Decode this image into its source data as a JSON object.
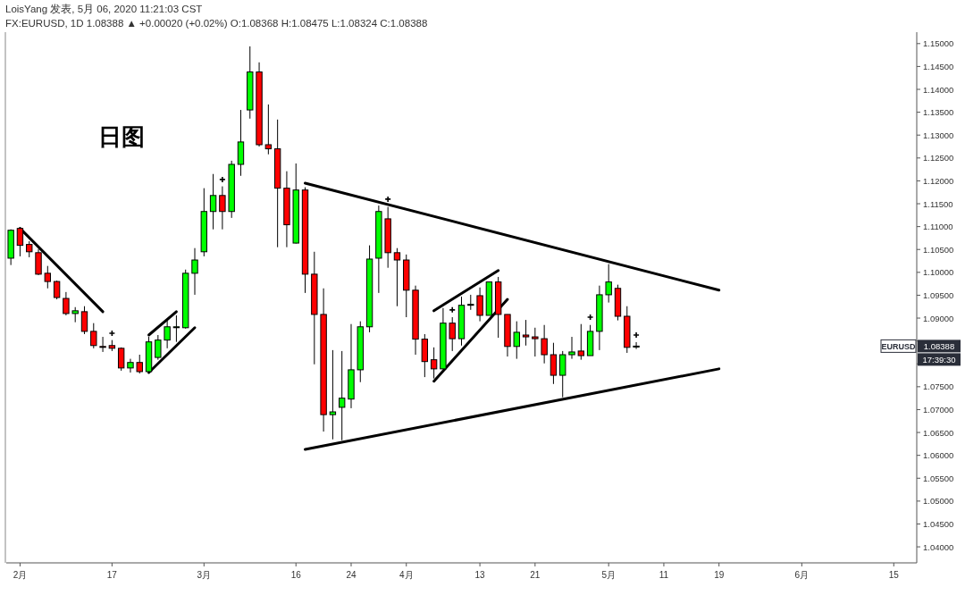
{
  "chart_data": {
    "type": "candlestick",
    "title": "LoisYang 发表, 5月 06, 2020 11:21:03 CST",
    "subtitle": "FX:EURUSD, 1D 1.08388 ▲ +0.00020 (+0.02%) O:1.08368 H:1.08475 L:1.08324 C:1.08388",
    "categories": [
      null,
      "2月",
      null,
      null,
      null,
      null,
      null,
      null,
      null,
      null,
      null,
      "17",
      null,
      null,
      null,
      null,
      null,
      null,
      null,
      null,
      null,
      "3月",
      null,
      null,
      null,
      null,
      null,
      null,
      null,
      null,
      null,
      "16",
      null,
      null,
      null,
      null,
      null,
      "24",
      null,
      null,
      null,
      null,
      null,
      "4月",
      null,
      null,
      null,
      null,
      null,
      null,
      null,
      "13",
      null,
      null,
      null,
      null,
      null,
      "21",
      null,
      null,
      null,
      null,
      null,
      null,
      null,
      "5月",
      null,
      null,
      null,
      null,
      null,
      "11",
      null,
      null,
      null,
      null,
      null,
      "19",
      null,
      null,
      null,
      null,
      null,
      null,
      null,
      null,
      "6月",
      null,
      null,
      null,
      null,
      null,
      null,
      null,
      null,
      null,
      "15",
      null,
      null
    ],
    "ohlc": [
      [
        1.1031,
        1.1094,
        1.1016,
        1.1092
      ],
      [
        1.1096,
        1.1098,
        1.1035,
        1.1059
      ],
      [
        1.1061,
        1.1068,
        1.1033,
        1.1045
      ],
      [
        1.1043,
        1.1051,
        1.0994,
        1.0996
      ],
      [
        1.0998,
        1.1014,
        1.0965,
        1.098
      ],
      [
        1.098,
        1.0982,
        1.0941,
        1.0945
      ],
      [
        1.0943,
        1.0957,
        1.0906,
        1.091
      ],
      [
        1.091,
        1.0924,
        1.0891,
        1.0916
      ],
      [
        1.0914,
        1.0926,
        1.0865,
        1.0871
      ],
      [
        1.0871,
        1.0889,
        1.0834,
        1.084
      ],
      [
        1.0838,
        1.0859,
        1.0826,
        1.0836
      ],
      [
        1.084,
        1.0852,
        1.0828,
        1.0834
      ],
      [
        1.0834,
        1.0836,
        1.0785,
        1.0791
      ],
      [
        1.0791,
        1.0811,
        1.0781,
        1.0803
      ],
      [
        1.0803,
        1.082,
        1.0779,
        1.0783
      ],
      [
        1.0783,
        1.0859,
        1.0781,
        1.0848
      ],
      [
        1.0814,
        1.0863,
        1.0809,
        1.0852
      ],
      [
        1.0852,
        1.0896,
        1.0834,
        1.0881
      ],
      [
        1.088,
        1.0906,
        1.0848,
        1.0881
      ],
      [
        1.0879,
        1.1006,
        1.0877,
        1.0998
      ],
      [
        1.0998,
        1.1053,
        1.0951,
        1.1027
      ],
      [
        1.1045,
        1.1184,
        1.1035,
        1.1133
      ],
      [
        1.1133,
        1.1215,
        1.1094,
        1.1168
      ],
      [
        1.1168,
        1.1188,
        1.1094,
        1.1133
      ],
      [
        1.1133,
        1.1244,
        1.1119,
        1.1236
      ],
      [
        1.1236,
        1.1355,
        1.1211,
        1.1285
      ],
      [
        1.1355,
        1.1494,
        1.1336,
        1.1438
      ],
      [
        1.1438,
        1.1459,
        1.1275,
        1.1279
      ],
      [
        1.1279,
        1.1367,
        1.1258,
        1.127
      ],
      [
        1.127,
        1.1334,
        1.1055,
        1.1184
      ],
      [
        1.1184,
        1.1221,
        1.1055,
        1.1104
      ],
      [
        1.1064,
        1.1238,
        1.1063,
        1.118
      ],
      [
        1.118,
        1.1186,
        1.0955,
        1.0996
      ],
      [
        1.0996,
        1.1045,
        1.0799,
        1.0908
      ],
      [
        1.0908,
        1.0965,
        1.0652,
        1.0689
      ],
      [
        1.0689,
        1.083,
        1.0635,
        1.0695
      ],
      [
        1.0705,
        1.0828,
        1.0633,
        1.0725
      ],
      [
        1.0723,
        1.0887,
        1.0703,
        1.0787
      ],
      [
        1.0787,
        1.0893,
        1.076,
        1.0881
      ],
      [
        1.0881,
        1.1059,
        1.0869,
        1.1029
      ],
      [
        1.1031,
        1.1146,
        1.0955,
        1.1133
      ],
      [
        1.1117,
        1.1143,
        1.101,
        1.1043
      ],
      [
        1.1043,
        1.1053,
        1.0926,
        1.1027
      ],
      [
        1.1027,
        1.1039,
        1.0902,
        1.0961
      ],
      [
        1.0961,
        1.0971,
        1.082,
        1.0854
      ],
      [
        1.0854,
        1.0865,
        1.0771,
        1.0805
      ],
      [
        1.0809,
        1.0836,
        1.0768,
        1.0789
      ],
      [
        1.0789,
        1.0922,
        1.0789,
        1.0889
      ],
      [
        1.0889,
        1.0902,
        1.0828,
        1.0855
      ],
      [
        1.0855,
        1.0947,
        1.084,
        1.0928
      ],
      [
        1.0929,
        1.0951,
        1.0918,
        1.093
      ],
      [
        1.0949,
        1.0967,
        1.0893,
        1.0906
      ],
      [
        1.0906,
        1.0979,
        1.0906,
        1.0979
      ],
      [
        1.0979,
        1.099,
        1.0857,
        1.0908
      ],
      [
        1.0908,
        1.0908,
        1.0816,
        1.0838
      ],
      [
        1.0838,
        1.0893,
        1.0811,
        1.0869
      ],
      [
        1.0863,
        1.0896,
        1.084,
        1.0859
      ],
      [
        1.0859,
        1.0879,
        1.0816,
        1.0855
      ],
      [
        1.0855,
        1.0885,
        1.0801,
        1.082
      ],
      [
        1.082,
        1.0846,
        1.0756,
        1.0775
      ],
      [
        1.0775,
        1.0828,
        1.0727,
        1.082
      ],
      [
        1.082,
        1.0859,
        1.0811,
        1.0826
      ],
      [
        1.0828,
        1.0887,
        1.0809,
        1.0818
      ],
      [
        1.0818,
        1.0885,
        1.0818,
        1.0871
      ],
      [
        1.0871,
        1.0971,
        1.083,
        1.0951
      ],
      [
        1.0951,
        1.1018,
        1.0934,
        1.0979
      ],
      [
        1.0965,
        1.0973,
        1.0895,
        1.0904
      ],
      [
        1.0904,
        1.0926,
        1.0824,
        1.0836
      ],
      [
        1.08368,
        1.08475,
        1.08324,
        1.08388
      ],
      null,
      null,
      null,
      null,
      null,
      null,
      null,
      null,
      null,
      null,
      null,
      null,
      null,
      null,
      null,
      null,
      null,
      null,
      null,
      null,
      null,
      null,
      null,
      null,
      null,
      null,
      null,
      null,
      null,
      null
    ],
    "colors": [
      "#00ff00",
      "#ff0000",
      "#ff0000",
      "#ff0000",
      "#ff0000",
      "#ff0000",
      "#ff0000",
      "#00ff00",
      "#ff0000",
      "#ff0000",
      "#ff0000",
      "#ff0000",
      "#ff0000",
      "#00ff00",
      "#ff0000",
      "#00ff00",
      "#00ff00",
      "#00ff00",
      "#00ff00",
      "#00ff00",
      "#00ff00",
      "#00ff00",
      "#00ff00",
      "#ff0000",
      "#00ff00",
      "#00ff00",
      "#00ff00",
      "#ff0000",
      "#ff0000",
      "#ff0000",
      "#ff0000",
      "#00ff00",
      "#ff0000",
      "#ff0000",
      "#ff0000",
      "#00ff00",
      "#00ff00",
      "#00ff00",
      "#00ff00",
      "#00ff00",
      "#00ff00",
      "#ff0000",
      "#ff0000",
      "#ff0000",
      "#ff0000",
      "#ff0000",
      "#ff0000",
      "#00ff00",
      "#ff0000",
      "#00ff00",
      "#00ff00",
      "#ff0000",
      "#00ff00",
      "#ff0000",
      "#ff0000",
      "#00ff00",
      "#ff0000",
      "#ff0000",
      "#ff0000",
      "#ff0000",
      "#00ff00",
      "#00ff00",
      "#ff0000",
      "#00ff00",
      "#00ff00",
      "#00ff00",
      "#ff0000",
      "#ff0000",
      "#00ff00",
      null,
      null,
      null,
      null,
      null,
      null,
      null,
      null,
      null,
      null,
      null,
      null,
      null,
      null,
      null,
      null,
      null,
      null,
      null,
      null,
      null,
      null,
      null,
      null,
      null,
      null,
      null,
      null,
      null,
      null
    ],
    "series": [
      {
        "type": "line",
        "color": "#000000",
        "values": [
          null,
          1.1096,
          null,
          null,
          null,
          null,
          null,
          null,
          null,
          null,
          1.0914,
          null,
          null,
          null,
          null,
          null,
          null,
          null,
          null,
          null,
          null,
          null,
          null,
          null,
          null,
          null,
          null,
          null,
          null,
          null,
          null,
          null,
          null,
          null,
          null,
          null,
          null,
          null,
          null,
          null,
          null,
          null,
          null,
          null,
          null,
          null,
          null,
          null,
          null,
          null,
          null,
          null,
          null,
          null,
          null,
          null,
          null,
          null,
          null,
          null,
          null,
          null,
          null,
          null,
          null,
          null,
          null,
          null,
          null,
          null,
          null,
          null,
          null,
          null,
          null,
          null,
          null,
          null,
          null,
          null,
          null,
          null,
          null,
          null,
          null,
          null,
          null,
          null,
          null,
          null,
          null,
          null,
          null,
          null,
          null,
          null,
          null,
          null,
          null
        ]
      },
      {
        "type": "line",
        "color": "#000000",
        "values": [
          null,
          null,
          null,
          null,
          null,
          null,
          null,
          null,
          null,
          null,
          null,
          null,
          null,
          null,
          null,
          1.0863,
          null,
          null,
          1.0914,
          null,
          null,
          null,
          null,
          null,
          null,
          null,
          null,
          null,
          null,
          null,
          null,
          null,
          null,
          null,
          null,
          null,
          null,
          null,
          null,
          null,
          null,
          null,
          null,
          null,
          null,
          null,
          null,
          null,
          null,
          null,
          null,
          null,
          null,
          null,
          null,
          null,
          null,
          null,
          null,
          null,
          null,
          null,
          null,
          null,
          null,
          null,
          null,
          null,
          null,
          null,
          null,
          null,
          null,
          null,
          null,
          null,
          null,
          null,
          null,
          null,
          null,
          null,
          null,
          null,
          null,
          null,
          null,
          null,
          null,
          null,
          null,
          null,
          null,
          null,
          null,
          null,
          null,
          null,
          null
        ]
      },
      {
        "type": "line",
        "color": "#000000",
        "values": [
          null,
          null,
          null,
          null,
          null,
          null,
          null,
          null,
          null,
          null,
          null,
          null,
          null,
          null,
          null,
          1.0781,
          null,
          null,
          null,
          null,
          1.0879,
          null,
          null,
          null,
          null,
          null,
          null,
          null,
          null,
          null,
          null,
          null,
          null,
          null,
          null,
          null,
          null,
          null,
          null,
          null,
          null,
          null,
          null,
          null,
          null,
          null,
          null,
          null,
          null,
          null,
          null,
          null,
          null,
          null,
          null,
          null,
          null,
          null,
          null,
          null,
          null,
          null,
          null,
          null,
          null,
          null,
          null,
          null,
          null,
          null,
          null,
          null,
          null,
          null,
          null,
          null,
          null,
          null,
          null,
          null,
          null,
          null,
          null,
          null,
          null,
          null,
          null,
          null,
          null,
          null,
          null,
          null,
          null,
          null,
          null,
          null,
          null,
          null,
          null
        ]
      },
      {
        "type": "line",
        "color": "#000000",
        "values": [
          null,
          null,
          null,
          null,
          null,
          null,
          null,
          null,
          null,
          null,
          null,
          null,
          null,
          null,
          null,
          null,
          null,
          null,
          null,
          null,
          null,
          null,
          null,
          null,
          null,
          null,
          null,
          null,
          null,
          null,
          null,
          null,
          1.1195,
          null,
          null,
          null,
          null,
          null,
          null,
          null,
          null,
          null,
          null,
          null,
          null,
          null,
          null,
          null,
          null,
          null,
          null,
          null,
          null,
          null,
          null,
          null,
          null,
          null,
          null,
          null,
          null,
          null,
          null,
          null,
          null,
          null,
          null,
          null,
          null,
          null,
          null,
          null,
          null,
          null,
          null,
          null,
          null,
          1.0961,
          null,
          null,
          null,
          null,
          null,
          null,
          null,
          null,
          null,
          null,
          null,
          null,
          null,
          null,
          null,
          null,
          null,
          null,
          null,
          null,
          null
        ]
      },
      {
        "type": "line",
        "color": "#000000",
        "values": [
          null,
          null,
          null,
          null,
          null,
          null,
          null,
          null,
          null,
          null,
          null,
          null,
          null,
          null,
          null,
          null,
          null,
          null,
          null,
          null,
          null,
          null,
          null,
          null,
          null,
          null,
          null,
          null,
          null,
          null,
          null,
          null,
          1.0613,
          null,
          null,
          null,
          null,
          null,
          null,
          null,
          null,
          null,
          null,
          null,
          null,
          null,
          null,
          null,
          null,
          null,
          null,
          null,
          null,
          null,
          null,
          null,
          null,
          null,
          null,
          null,
          null,
          null,
          null,
          null,
          null,
          null,
          null,
          null,
          null,
          null,
          null,
          null,
          null,
          null,
          null,
          null,
          null,
          1.0789,
          null,
          null,
          null,
          null,
          null,
          null,
          null,
          null,
          null,
          null,
          null,
          null,
          null,
          null,
          null,
          null,
          null,
          null,
          null,
          null,
          null
        ]
      },
      {
        "type": "line",
        "color": "#000000",
        "values": [
          null,
          null,
          null,
          null,
          null,
          null,
          null,
          null,
          null,
          null,
          null,
          null,
          null,
          null,
          null,
          null,
          null,
          null,
          null,
          null,
          null,
          null,
          null,
          null,
          null,
          null,
          null,
          null,
          null,
          null,
          null,
          null,
          null,
          null,
          null,
          null,
          null,
          null,
          null,
          null,
          null,
          null,
          null,
          null,
          null,
          null,
          1.0916,
          null,
          null,
          null,
          null,
          null,
          null,
          1.1004,
          null,
          null,
          null,
          null,
          null,
          null,
          null,
          null,
          null,
          null,
          null,
          null,
          null,
          null,
          null,
          null,
          null,
          null,
          null,
          null,
          null,
          null,
          null,
          null,
          null,
          null,
          null,
          null,
          null,
          null,
          null,
          null,
          null,
          null,
          null,
          null,
          null,
          null,
          null,
          null,
          null,
          null,
          null,
          null,
          null
        ]
      },
      {
        "type": "line",
        "color": "#000000",
        "values": [
          null,
          null,
          null,
          null,
          null,
          null,
          null,
          null,
          null,
          null,
          null,
          null,
          null,
          null,
          null,
          null,
          null,
          null,
          null,
          null,
          null,
          null,
          null,
          null,
          null,
          null,
          null,
          null,
          null,
          null,
          null,
          null,
          null,
          null,
          null,
          null,
          null,
          null,
          null,
          null,
          null,
          null,
          null,
          null,
          null,
          null,
          1.0762,
          null,
          null,
          null,
          null,
          null,
          null,
          null,
          1.0941,
          null,
          null,
          null,
          null,
          null,
          null,
          null,
          null,
          null,
          null,
          null,
          null,
          null,
          null,
          null,
          null,
          null,
          null,
          null,
          null,
          null,
          null,
          null,
          null,
          null,
          null,
          null,
          null,
          null,
          null,
          null,
          null,
          null,
          null,
          null,
          null,
          null,
          null,
          null,
          null,
          null,
          null,
          null,
          null
        ]
      },
      {
        "type": "scatter",
        "marker": "cross",
        "color": "#000000",
        "values": [
          null,
          null,
          null,
          null,
          null,
          null,
          null,
          null,
          null,
          null,
          null,
          1.0867,
          null,
          null,
          null,
          null,
          null,
          null,
          null,
          null,
          null,
          null,
          null,
          1.1203,
          null,
          null,
          null,
          null,
          null,
          null,
          null,
          null,
          null,
          null,
          null,
          null,
          null,
          null,
          null,
          null,
          null,
          1.116,
          null,
          null,
          null,
          null,
          null,
          null,
          1.0918,
          null,
          null,
          null,
          null,
          null,
          null,
          null,
          null,
          null,
          null,
          null,
          null,
          null,
          null,
          1.0902,
          null,
          null,
          null,
          null,
          1.0863,
          null,
          null,
          null,
          null,
          null,
          null,
          null,
          null,
          null,
          null,
          null,
          null,
          null,
          null,
          null,
          null,
          null,
          null,
          null,
          null,
          null,
          null,
          null,
          null,
          null,
          null,
          null,
          null,
          null,
          null
        ]
      }
    ],
    "ylim": [
      1.0365,
      1.1525
    ],
    "yticks": [
      {
        "value": 1.04,
        "label": "1.04000"
      },
      {
        "value": 1.045,
        "label": "1.04500"
      },
      {
        "value": 1.05,
        "label": "1.05000"
      },
      {
        "value": 1.055,
        "label": "1.05500"
      },
      {
        "value": 1.06,
        "label": "1.06000"
      },
      {
        "value": 1.065,
        "label": "1.06500"
      },
      {
        "value": 1.07,
        "label": "1.07000"
      },
      {
        "value": 1.075,
        "label": "1.07500"
      },
      {
        "value": 1.08,
        "label": null
      },
      {
        "value": 1.085,
        "label": null
      },
      {
        "value": 1.09,
        "label": "1.09000"
      },
      {
        "value": 1.095,
        "label": "1.09500"
      },
      {
        "value": 1.1,
        "label": "1.10000"
      },
      {
        "value": 1.105,
        "label": "1.10500"
      },
      {
        "value": 1.11,
        "label": "1.11000"
      },
      {
        "value": 1.115,
        "label": "1.11500"
      },
      {
        "value": 1.12,
        "label": "1.12000"
      },
      {
        "value": 1.125,
        "label": "1.12500"
      },
      {
        "value": 1.13,
        "label": "1.13000"
      },
      {
        "value": 1.135,
        "label": "1.13500"
      },
      {
        "value": 1.14,
        "label": "1.14000"
      },
      {
        "value": 1.145,
        "label": "1.14500"
      },
      {
        "value": 1.15,
        "label": "1.15000"
      }
    ],
    "annotations": [
      "日图",
      {
        "text": "EURUSD",
        "y": 1.08388
      },
      "1.08388",
      "17:39:30"
    ]
  }
}
